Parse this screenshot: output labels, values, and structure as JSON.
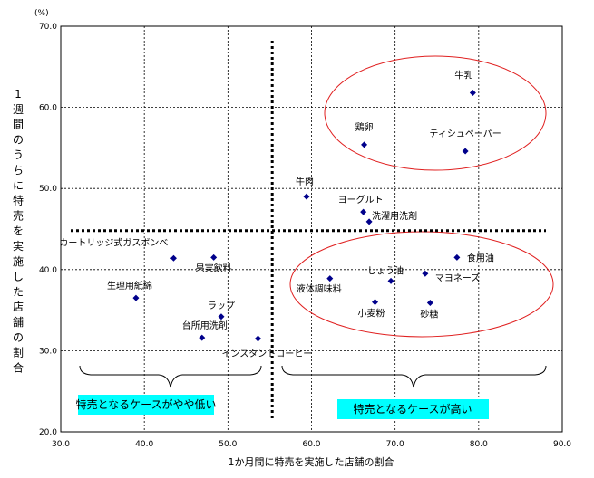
{
  "chart_data": {
    "type": "scatter",
    "xlabel": "1か月間に特売を実施した店舗の割合",
    "ylabel": "1週間のうちに特売を実施した店舗の割合",
    "y_unit": "(%)",
    "xlim": [
      30.0,
      90.0
    ],
    "ylim": [
      20.0,
      70.0
    ],
    "x_ticks": [
      "30.0",
      "40.0",
      "50.0",
      "60.0",
      "70.0",
      "80.0",
      "90.0"
    ],
    "y_ticks": [
      "20.0",
      "30.0",
      "40.0",
      "50.0",
      "60.0",
      "70.0"
    ],
    "grid": true,
    "points": [
      {
        "name": "牛乳",
        "x": 79.3,
        "y": 61.8
      },
      {
        "name": "鶏卵",
        "x": 66.3,
        "y": 55.4
      },
      {
        "name": "ティシュペーパー",
        "x": 78.4,
        "y": 54.6
      },
      {
        "name": "牛肉",
        "x": 59.4,
        "y": 49.0
      },
      {
        "name": "ヨーグルト",
        "x": 66.2,
        "y": 47.1
      },
      {
        "name": "洗濯用洗剤",
        "x": 66.9,
        "y": 45.9
      },
      {
        "name": "カートリッジ式ガスボンベ",
        "x": 43.5,
        "y": 41.4
      },
      {
        "name": "果実飲料",
        "x": 48.3,
        "y": 41.5
      },
      {
        "name": "食用油",
        "x": 77.4,
        "y": 41.5
      },
      {
        "name": "しょう油",
        "x": 69.5,
        "y": 38.6
      },
      {
        "name": "マヨネーズ",
        "x": 73.6,
        "y": 39.5
      },
      {
        "name": "液体調味料",
        "x": 62.2,
        "y": 38.9
      },
      {
        "name": "生理用紙綿",
        "x": 39.0,
        "y": 36.5
      },
      {
        "name": "小麦粉",
        "x": 67.6,
        "y": 36.0
      },
      {
        "name": "砂糖",
        "x": 74.2,
        "y": 35.9
      },
      {
        "name": "ラップ",
        "x": 49.2,
        "y": 34.2
      },
      {
        "name": "台所用洗剤",
        "x": 46.9,
        "y": 31.6
      },
      {
        "name": "インスタントコーヒー",
        "x": 53.6,
        "y": 31.5
      }
    ],
    "reference_lines": {
      "x": 55.3,
      "y": 44.8
    },
    "groups": [
      {
        "label": "特売となるケースがやや低い",
        "color": "#00ffff"
      },
      {
        "label": "特売となるケースが高い",
        "color": "#00ffff"
      }
    ],
    "ellipse_color": "#e02020",
    "marker_color": "#00008b"
  }
}
